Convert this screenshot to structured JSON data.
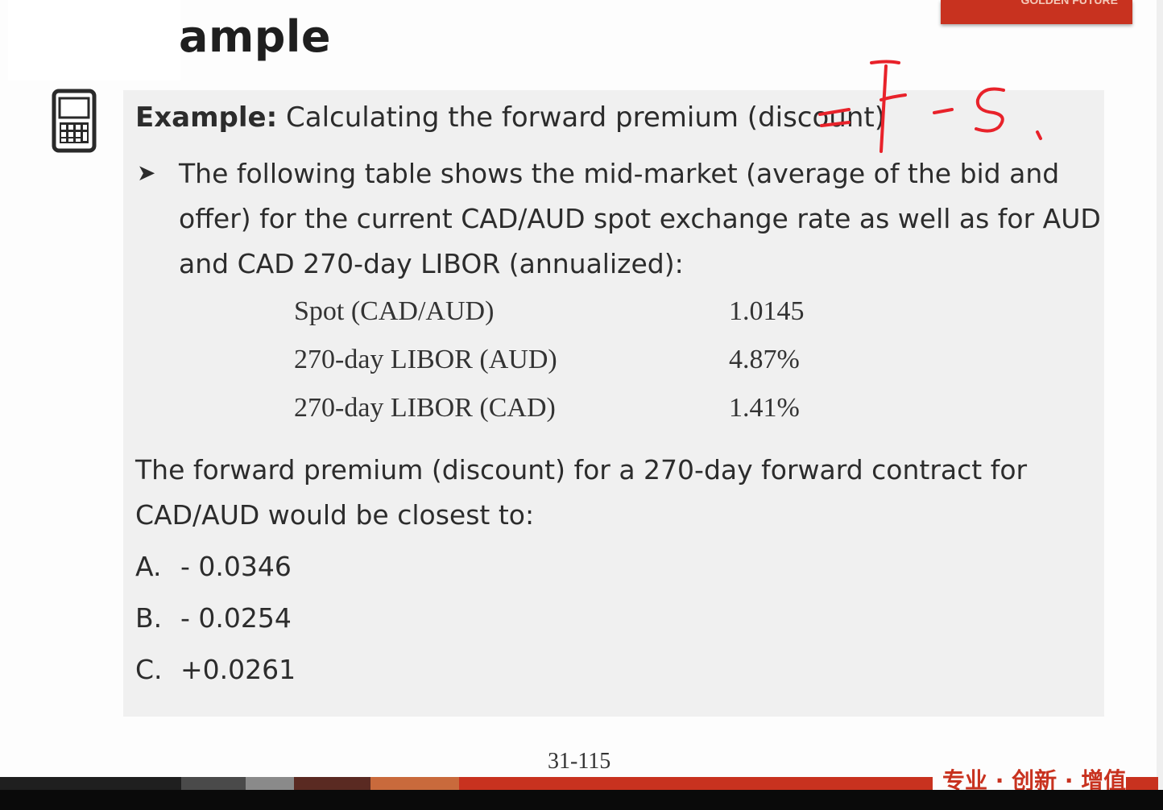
{
  "slide": {
    "title_fragment": "ample",
    "logo_text": "GOLDEN FUTURE",
    "page_number": "31-115",
    "footer_slogan": "专业 · 创新 · 增值"
  },
  "example": {
    "label": "Example:",
    "heading": "Calculating the forward premium (discount)",
    "bullet_text": "The following table shows the mid-market (average of the bid and offer) for the current CAD/AUD spot exchange rate as well as for AUD and CAD 270-day LIBOR (annualized):",
    "table": [
      {
        "label": "Spot (CAD/AUD)",
        "value": "1.0145"
      },
      {
        "label": "270-day LIBOR (AUD)",
        "value": "4.87%"
      },
      {
        "label": "270-day LIBOR (CAD)",
        "value": "1.41%"
      }
    ],
    "question": "The forward premium (discount) for a 270-day forward contract for CAD/AUD would be closest to:",
    "options": [
      {
        "letter": "A.",
        "text": "- 0.0346"
      },
      {
        "letter": "B.",
        "text": "- 0.0254"
      },
      {
        "letter": "C.",
        "text": "+0.0261"
      }
    ]
  },
  "annotation": {
    "text": "=F-S",
    "color": "#e8222a"
  },
  "colors": {
    "brand_red": "#c8321f",
    "content_bg": "#f0f0f0",
    "text": "#2c2c2c"
  }
}
